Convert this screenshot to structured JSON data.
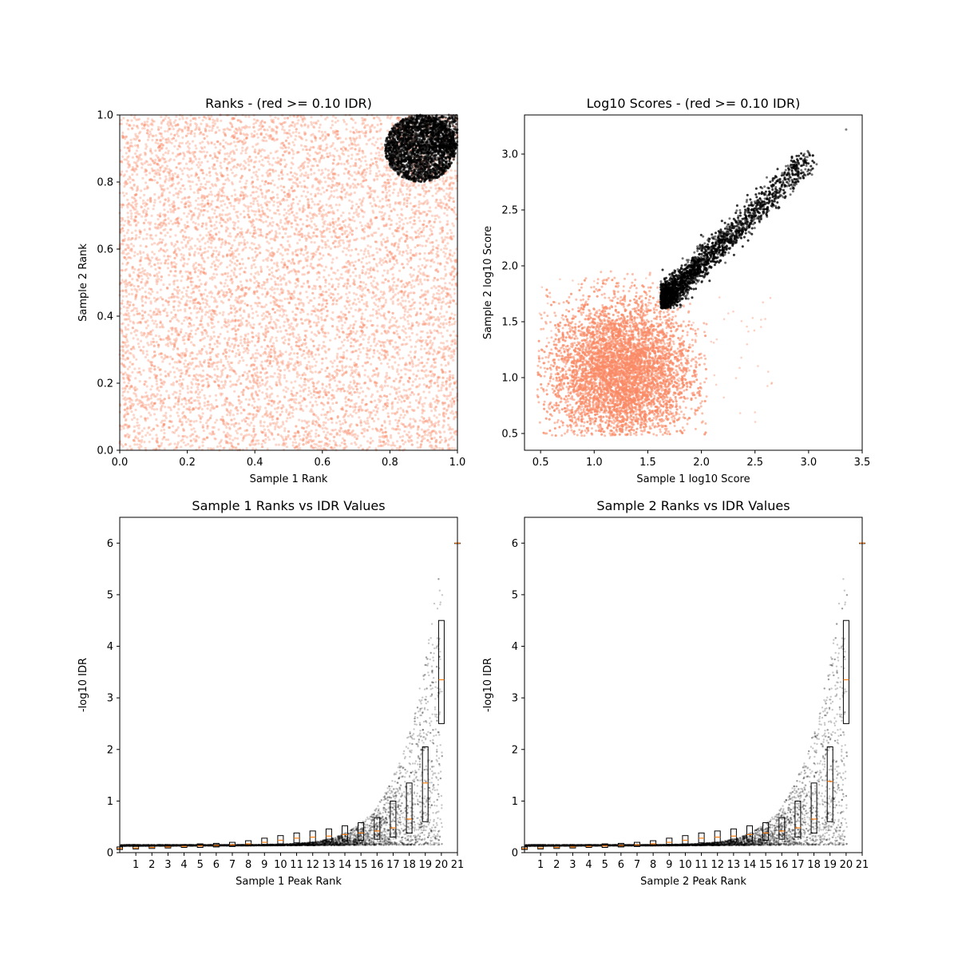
{
  "chart_data": [
    {
      "type": "scatter",
      "title": "Ranks - (red >= 0.10 IDR)",
      "xlabel": "Sample 1 Rank",
      "ylabel": "Sample 2 Rank",
      "xlim": [
        0.0,
        1.0
      ],
      "ylim": [
        0.0,
        1.0
      ],
      "xticks": [
        "0.0",
        "0.2",
        "0.4",
        "0.6",
        "0.8",
        "1.0"
      ],
      "yticks": [
        "0.0",
        "0.2",
        "0.4",
        "0.6",
        "0.8",
        "1.0"
      ],
      "series": [
        {
          "color": "#fa8a66",
          "description_region": "uniform over full square",
          "x_range": [
            0.0,
            1.0
          ],
          "y_range": [
            0.0,
            1.0
          ]
        },
        {
          "color": "#000000",
          "description_region": "circular cluster near top-right",
          "center": [
            0.89,
            0.9
          ],
          "radius": 0.1
        }
      ]
    },
    {
      "type": "scatter",
      "title": "Log10 Scores - (red >= 0.10 IDR)",
      "xlabel": "Sample 1 log10 Score",
      "ylabel": "Sample 2 log10 Score",
      "xlim": [
        0.35,
        3.5
      ],
      "ylim": [
        0.35,
        3.35
      ],
      "xticks": [
        "0.5",
        "1.0",
        "1.5",
        "2.0",
        "2.5",
        "3.0",
        "3.5"
      ],
      "yticks": [
        "0.5",
        "1.0",
        "1.5",
        "2.0",
        "2.5",
        "3.0"
      ],
      "series": [
        {
          "color": "#fa8a66",
          "description_region": "dense blob lower-left",
          "center": [
            1.2,
            1.1
          ],
          "extent_x": [
            0.47,
            2.0
          ],
          "extent_y": [
            0.48,
            1.95
          ]
        },
        {
          "color": "#000000",
          "description_region": "diagonal tail upper-right",
          "start": [
            1.65,
            1.7
          ],
          "end": [
            3.0,
            2.95
          ]
        }
      ]
    },
    {
      "type": "scatter",
      "title": "Sample 1 Ranks vs IDR Values",
      "xlabel": "Sample 1 Peak Rank",
      "ylabel": "-log10 IDR",
      "xlim": [
        0,
        21
      ],
      "ylim": [
        0,
        6.5
      ],
      "xticks": [
        "1",
        "2",
        "3",
        "4",
        "5",
        "6",
        "7",
        "8",
        "9",
        "10",
        "11",
        "12",
        "13",
        "14",
        "15",
        "16",
        "17",
        "18",
        "19",
        "20",
        "21"
      ],
      "yticks": [
        "0",
        "1",
        "2",
        "3",
        "4",
        "5",
        "6"
      ],
      "boxplot_medians": [
        0.08,
        0.09,
        0.1,
        0.11,
        0.12,
        0.13,
        0.14,
        0.15,
        0.17,
        0.2,
        0.24,
        0.28,
        0.3,
        0.32,
        0.35,
        0.38,
        0.42,
        0.48,
        0.65,
        1.35,
        3.35,
        6.0
      ],
      "boxplot_q1": [
        0.06,
        0.07,
        0.08,
        0.09,
        0.1,
        0.1,
        0.11,
        0.12,
        0.13,
        0.15,
        0.17,
        0.19,
        0.2,
        0.21,
        0.22,
        0.24,
        0.26,
        0.3,
        0.38,
        0.6,
        2.5,
        6.0
      ],
      "boxplot_q3": [
        0.11,
        0.12,
        0.13,
        0.14,
        0.15,
        0.17,
        0.18,
        0.2,
        0.23,
        0.28,
        0.33,
        0.38,
        0.42,
        0.46,
        0.52,
        0.58,
        0.68,
        1.0,
        1.35,
        2.05,
        4.5,
        6.0
      ]
    },
    {
      "type": "scatter",
      "title": "Sample 2 Ranks vs IDR Values",
      "xlabel": "Sample 2 Peak Rank",
      "ylabel": "-log10 IDR",
      "xlim": [
        0,
        21
      ],
      "ylim": [
        0,
        6.5
      ],
      "xticks": [
        "1",
        "2",
        "3",
        "4",
        "5",
        "6",
        "7",
        "8",
        "9",
        "10",
        "11",
        "12",
        "13",
        "14",
        "15",
        "16",
        "17",
        "18",
        "19",
        "20",
        "21"
      ],
      "yticks": [
        "0",
        "1",
        "2",
        "3",
        "4",
        "5",
        "6"
      ],
      "boxplot_medians": [
        0.08,
        0.09,
        0.1,
        0.11,
        0.12,
        0.13,
        0.14,
        0.15,
        0.17,
        0.2,
        0.24,
        0.28,
        0.3,
        0.32,
        0.35,
        0.38,
        0.42,
        0.48,
        0.65,
        1.38,
        3.35,
        6.0
      ],
      "boxplot_q1": [
        0.06,
        0.07,
        0.08,
        0.09,
        0.1,
        0.1,
        0.11,
        0.12,
        0.13,
        0.15,
        0.17,
        0.19,
        0.2,
        0.21,
        0.22,
        0.24,
        0.26,
        0.3,
        0.38,
        0.6,
        2.5,
        6.0
      ],
      "boxplot_q3": [
        0.11,
        0.12,
        0.13,
        0.14,
        0.15,
        0.17,
        0.18,
        0.2,
        0.23,
        0.28,
        0.33,
        0.38,
        0.42,
        0.46,
        0.52,
        0.58,
        0.68,
        1.0,
        1.35,
        2.05,
        4.5,
        6.0
      ]
    }
  ]
}
